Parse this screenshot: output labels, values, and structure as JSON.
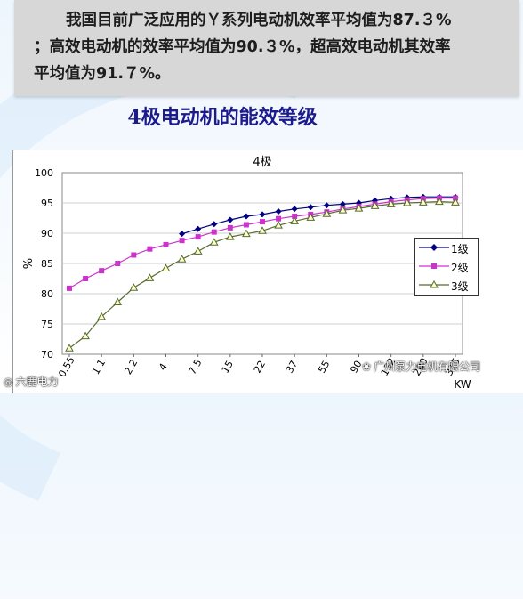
{
  "banner": {
    "line1": "我国目前广泛应用的Ｙ系列电动机效率平均值为87.３%",
    "line2": "；高效电动机的效率平均值为90.３%，超高效电动机其效率",
    "line3": "平均值为91.７%。"
  },
  "heading": "4极电动机的能效等级",
  "watermarks": {
    "left": "六鹿电力",
    "right": "广州泵力电机有限公司"
  },
  "chart_data": {
    "type": "line",
    "title": "4极",
    "xlabel": "KW",
    "ylabel": "%",
    "ylim": [
      70,
      100
    ],
    "yticks": [
      70,
      75,
      80,
      85,
      90,
      95,
      100
    ],
    "grid": true,
    "legend_position": "right",
    "x": [
      "0.55",
      "0.75",
      "1.1",
      "1.5",
      "2.2",
      "3",
      "4",
      "5.5",
      "7.5",
      "11",
      "15",
      "18.5",
      "22",
      "30",
      "37",
      "45",
      "55",
      "75",
      "90",
      "110",
      "132",
      "160",
      "200",
      "250",
      "315"
    ],
    "x_tick_labels": [
      "0.55",
      "1.1",
      "2.2",
      "4",
      "7.5",
      "15",
      "22",
      "37",
      "55",
      "90",
      "132",
      "200",
      "315"
    ],
    "series": [
      {
        "name": "1级",
        "color": "#000080",
        "marker": "diamond",
        "values": [
          null,
          null,
          null,
          null,
          null,
          null,
          null,
          89.9,
          90.7,
          91.5,
          92.2,
          92.8,
          93.1,
          93.6,
          94.0,
          94.3,
          94.6,
          94.8,
          95.0,
          95.4,
          95.7,
          95.9,
          96.0,
          96.0,
          96.0
        ]
      },
      {
        "name": "2级",
        "color": "#cc33cc",
        "marker": "square",
        "values": [
          80.9,
          82.5,
          83.8,
          85.0,
          86.4,
          87.4,
          88.1,
          88.8,
          89.4,
          90.2,
          90.9,
          91.4,
          91.9,
          92.4,
          92.8,
          93.1,
          93.5,
          94.0,
          94.4,
          94.8,
          95.2,
          95.5,
          95.7,
          95.8,
          95.8
        ]
      },
      {
        "name": "3级",
        "color": "#556b2f",
        "marker": "triangle",
        "values": [
          71.0,
          73.0,
          76.2,
          78.6,
          81.0,
          82.6,
          84.2,
          85.7,
          87.0,
          88.5,
          89.4,
          89.9,
          90.4,
          91.3,
          92.0,
          92.6,
          93.2,
          93.8,
          94.1,
          94.5,
          94.8,
          95.0,
          95.1,
          95.2,
          95.1
        ]
      }
    ]
  }
}
